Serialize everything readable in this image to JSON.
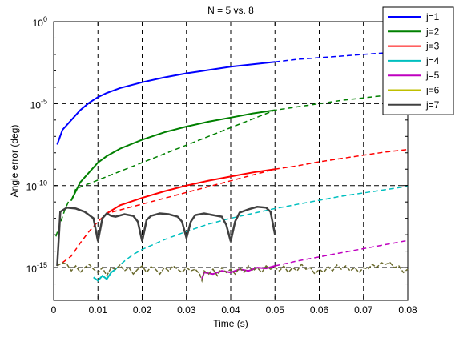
{
  "chart_data": {
    "type": "line",
    "title": "N = 5 vs. 8",
    "xlabel": "Time (s)",
    "ylabel": "Angle error (deg)",
    "xlim": [
      0,
      0.08
    ],
    "ylim_exponent": [
      -17,
      0
    ],
    "y_scale": "log",
    "grid": true,
    "legend_position": "top-right",
    "x_ticks": [
      "0",
      "0.01",
      "0.02",
      "0.03",
      "0.04",
      "0.05",
      "0.06",
      "0.07",
      "0.08"
    ],
    "y_ticks": [
      {
        "base": "10",
        "exp": "0",
        "value": 0
      },
      {
        "base": "10",
        "exp": "-5",
        "value": -5
      },
      {
        "base": "10",
        "exp": "-10",
        "value": -10
      },
      {
        "base": "10",
        "exp": "-15",
        "value": -15
      }
    ],
    "series": [
      {
        "name": "j=1",
        "color": "#0000ff",
        "dash": "--",
        "solid": [
          [
            0.0008,
            -7.5
          ],
          [
            0.002,
            -6.6
          ],
          [
            0.004,
            -6.0
          ],
          [
            0.006,
            -5.4
          ],
          [
            0.008,
            -4.95
          ],
          [
            0.01,
            -4.6
          ],
          [
            0.012,
            -4.35
          ],
          [
            0.015,
            -4.05
          ],
          [
            0.02,
            -3.7
          ],
          [
            0.025,
            -3.4
          ],
          [
            0.03,
            -3.15
          ],
          [
            0.035,
            -2.95
          ],
          [
            0.04,
            -2.75
          ],
          [
            0.045,
            -2.6
          ],
          [
            0.05,
            -2.45
          ]
        ],
        "dashed": [
          [
            0.05,
            -2.45
          ],
          [
            0.055,
            -2.3
          ],
          [
            0.06,
            -2.2
          ],
          [
            0.065,
            -2.1
          ],
          [
            0.07,
            -2.0
          ],
          [
            0.075,
            -1.9
          ],
          [
            0.08,
            -1.8
          ]
        ]
      },
      {
        "name": "j=2",
        "color": "#008000",
        "dash": "--",
        "solid": [
          [
            0.004,
            -10.9
          ],
          [
            0.006,
            -9.8
          ],
          [
            0.008,
            -9.2
          ],
          [
            0.01,
            -8.6
          ],
          [
            0.012,
            -8.2
          ],
          [
            0.015,
            -7.75
          ],
          [
            0.02,
            -7.2
          ],
          [
            0.025,
            -6.75
          ],
          [
            0.03,
            -6.4
          ],
          [
            0.035,
            -6.1
          ],
          [
            0.04,
            -5.85
          ],
          [
            0.045,
            -5.6
          ],
          [
            0.05,
            -5.4
          ]
        ],
        "dashed": [
          [
            0.0005,
            -13.1
          ],
          [
            0.0015,
            -12.3
          ],
          [
            0.0025,
            -11.5
          ],
          [
            0.0035,
            -10.9
          ],
          [
            0.004,
            -10.9
          ],
          [
            0.005,
            -10.2
          ],
          [
            0.05,
            -5.4
          ],
          [
            0.055,
            -5.2
          ],
          [
            0.06,
            -5.0
          ],
          [
            0.065,
            -4.8
          ],
          [
            0.07,
            -4.65
          ],
          [
            0.075,
            -4.5
          ],
          [
            0.08,
            -4.35
          ]
        ]
      },
      {
        "name": "j=3",
        "color": "#ff0000",
        "dash": "--",
        "solid": [
          [
            0.012,
            -11.7
          ],
          [
            0.015,
            -11.2
          ],
          [
            0.02,
            -10.75
          ],
          [
            0.025,
            -10.35
          ],
          [
            0.03,
            -10.0
          ],
          [
            0.035,
            -9.7
          ],
          [
            0.04,
            -9.45
          ],
          [
            0.045,
            -9.2
          ],
          [
            0.05,
            -9.0
          ]
        ],
        "dashed": [
          [
            0.002,
            -14.7
          ],
          [
            0.004,
            -14.3
          ],
          [
            0.006,
            -13.5
          ],
          [
            0.008,
            -12.8
          ],
          [
            0.01,
            -12.2
          ],
          [
            0.012,
            -11.7
          ],
          [
            0.05,
            -9.0
          ],
          [
            0.055,
            -8.8
          ],
          [
            0.06,
            -8.55
          ],
          [
            0.065,
            -8.35
          ],
          [
            0.07,
            -8.15
          ],
          [
            0.075,
            -7.95
          ],
          [
            0.08,
            -7.8
          ]
        ]
      },
      {
        "name": "j=4",
        "color": "#00bfbf",
        "dash": "--",
        "solid": [
          [
            0.009,
            -15.6
          ],
          [
            0.01,
            -15.8
          ],
          [
            0.011,
            -15.5
          ],
          [
            0.012,
            -15.7
          ],
          [
            0.013,
            -15.3
          ],
          [
            0.014,
            -15.1
          ]
        ],
        "dashed": [
          [
            0.014,
            -15.1
          ],
          [
            0.016,
            -14.6
          ],
          [
            0.018,
            -14.2
          ],
          [
            0.02,
            -13.9
          ],
          [
            0.025,
            -13.3
          ],
          [
            0.03,
            -12.8
          ],
          [
            0.035,
            -12.35
          ],
          [
            0.04,
            -12.0
          ],
          [
            0.045,
            -11.7
          ],
          [
            0.05,
            -11.4
          ],
          [
            0.055,
            -11.15
          ],
          [
            0.06,
            -10.9
          ],
          [
            0.065,
            -10.65
          ],
          [
            0.07,
            -10.45
          ],
          [
            0.075,
            -10.25
          ],
          [
            0.08,
            -10.05
          ]
        ]
      },
      {
        "name": "j=5",
        "color": "#bf00bf",
        "dash": "--",
        "solid": [
          [
            0.0335,
            -15.7
          ],
          [
            0.034,
            -15.3
          ],
          [
            0.036,
            -15.4
          ],
          [
            0.038,
            -15.2
          ],
          [
            0.04,
            -15.3
          ],
          [
            0.042,
            -15.1
          ],
          [
            0.044,
            -15.2
          ],
          [
            0.046,
            -15.0
          ],
          [
            0.048,
            -15.05
          ],
          [
            0.05,
            -14.9
          ]
        ],
        "dashed": [
          [
            0.05,
            -14.9
          ],
          [
            0.055,
            -14.6
          ],
          [
            0.06,
            -14.35
          ],
          [
            0.065,
            -14.1
          ],
          [
            0.07,
            -13.85
          ],
          [
            0.075,
            -13.6
          ],
          [
            0.08,
            -13.35
          ]
        ]
      },
      {
        "name": "j=6",
        "color": "#bfbf00",
        "dash": "--",
        "solid": [],
        "dashed": []
      },
      {
        "name": "j=7",
        "color": "#404040",
        "dash": "--",
        "solid": [
          [
            0.0008,
            -14.9
          ],
          [
            0.002,
            -14.7
          ],
          [
            0.003,
            -14.8
          ],
          [
            0.004,
            -15.2
          ],
          [
            0.005,
            -14.9
          ],
          [
            0.006,
            -15.3
          ],
          [
            0.007,
            -15.0
          ],
          [
            0.008,
            -14.8
          ],
          [
            0.009,
            -15.1
          ],
          [
            0.01,
            -15.3
          ],
          [
            0.011,
            -15.0
          ],
          [
            0.012,
            -15.5
          ],
          [
            0.013,
            -15.0
          ],
          [
            0.014,
            -15.1
          ],
          [
            0.015,
            -14.85
          ],
          [
            0.016,
            -15.2
          ],
          [
            0.017,
            -15.0
          ],
          [
            0.018,
            -15.4
          ],
          [
            0.019,
            -15.1
          ],
          [
            0.02,
            -14.9
          ],
          [
            0.021,
            -15.3
          ],
          [
            0.022,
            -14.95
          ],
          [
            0.023,
            -15.1
          ],
          [
            0.024,
            -15.4
          ],
          [
            0.025,
            -15.0
          ],
          [
            0.026,
            -15.2
          ],
          [
            0.027,
            -14.9
          ],
          [
            0.028,
            -15.1
          ],
          [
            0.029,
            -15.3
          ],
          [
            0.03,
            -15.0
          ],
          [
            0.031,
            -15.2
          ],
          [
            0.032,
            -15.1
          ],
          [
            0.033,
            -15.4
          ],
          [
            0.0335,
            -15.8
          ],
          [
            0.034,
            -15.2
          ],
          [
            0.035,
            -15.4
          ],
          [
            0.036,
            -15.1
          ],
          [
            0.037,
            -15.5
          ],
          [
            0.038,
            -15.0
          ],
          [
            0.039,
            -15.3
          ],
          [
            0.04,
            -15.1
          ],
          [
            0.041,
            -15.4
          ],
          [
            0.042,
            -15.0
          ],
          [
            0.043,
            -15.3
          ],
          [
            0.044,
            -14.9
          ],
          [
            0.045,
            -15.2
          ],
          [
            0.046,
            -15.0
          ],
          [
            0.047,
            -15.3
          ],
          [
            0.048,
            -14.9
          ],
          [
            0.049,
            -15.1
          ],
          [
            0.05,
            -15.0
          ],
          [
            0.051,
            -15.2
          ],
          [
            0.052,
            -14.9
          ],
          [
            0.053,
            -15.3
          ],
          [
            0.054,
            -15.0
          ],
          [
            0.055,
            -15.2
          ],
          [
            0.056,
            -14.8
          ],
          [
            0.057,
            -15.1
          ],
          [
            0.058,
            -15.0
          ],
          [
            0.059,
            -15.4
          ],
          [
            0.06,
            -15.1
          ],
          [
            0.061,
            -15.3
          ],
          [
            0.062,
            -14.95
          ],
          [
            0.063,
            -15.2
          ],
          [
            0.064,
            -14.85
          ],
          [
            0.065,
            -15.1
          ],
          [
            0.066,
            -14.9
          ],
          [
            0.067,
            -15.2
          ],
          [
            0.068,
            -15.0
          ],
          [
            0.069,
            -15.3
          ],
          [
            0.07,
            -15.0
          ],
          [
            0.071,
            -15.1
          ],
          [
            0.072,
            -14.8
          ],
          [
            0.073,
            -15.0
          ],
          [
            0.074,
            -14.7
          ],
          [
            0.075,
            -14.8
          ],
          [
            0.076,
            -14.7
          ],
          [
            0.077,
            -15.0
          ],
          [
            0.078,
            -14.9
          ],
          [
            0.079,
            -15.3
          ],
          [
            0.08,
            -15.1
          ]
        ],
        "dashed": [],
        "solid2": [
          [
            0.0008,
            -14.9
          ],
          [
            0.0015,
            -11.6
          ],
          [
            0.003,
            -11.35
          ],
          [
            0.005,
            -11.4
          ],
          [
            0.007,
            -11.6
          ],
          [
            0.009,
            -12.0
          ],
          [
            0.01,
            -13.4
          ],
          [
            0.011,
            -12.0
          ],
          [
            0.012,
            -11.7
          ],
          [
            0.013,
            -11.85
          ],
          [
            0.014,
            -11.9
          ],
          [
            0.016,
            -11.75
          ],
          [
            0.018,
            -11.85
          ],
          [
            0.019,
            -12.2
          ],
          [
            0.02,
            -13.4
          ],
          [
            0.021,
            -12.1
          ],
          [
            0.022,
            -11.85
          ],
          [
            0.024,
            -11.7
          ],
          [
            0.026,
            -11.75
          ],
          [
            0.028,
            -11.9
          ],
          [
            0.029,
            -12.2
          ],
          [
            0.03,
            -13.2
          ],
          [
            0.031,
            -12.2
          ],
          [
            0.032,
            -11.8
          ],
          [
            0.034,
            -11.7
          ],
          [
            0.036,
            -11.8
          ],
          [
            0.038,
            -11.9
          ],
          [
            0.039,
            -12.4
          ],
          [
            0.04,
            -13.4
          ],
          [
            0.041,
            -12.2
          ],
          [
            0.042,
            -11.65
          ],
          [
            0.044,
            -11.45
          ],
          [
            0.046,
            -11.3
          ],
          [
            0.048,
            -11.35
          ],
          [
            0.049,
            -11.6
          ],
          [
            0.05,
            -13.0
          ]
        ]
      }
    ]
  }
}
